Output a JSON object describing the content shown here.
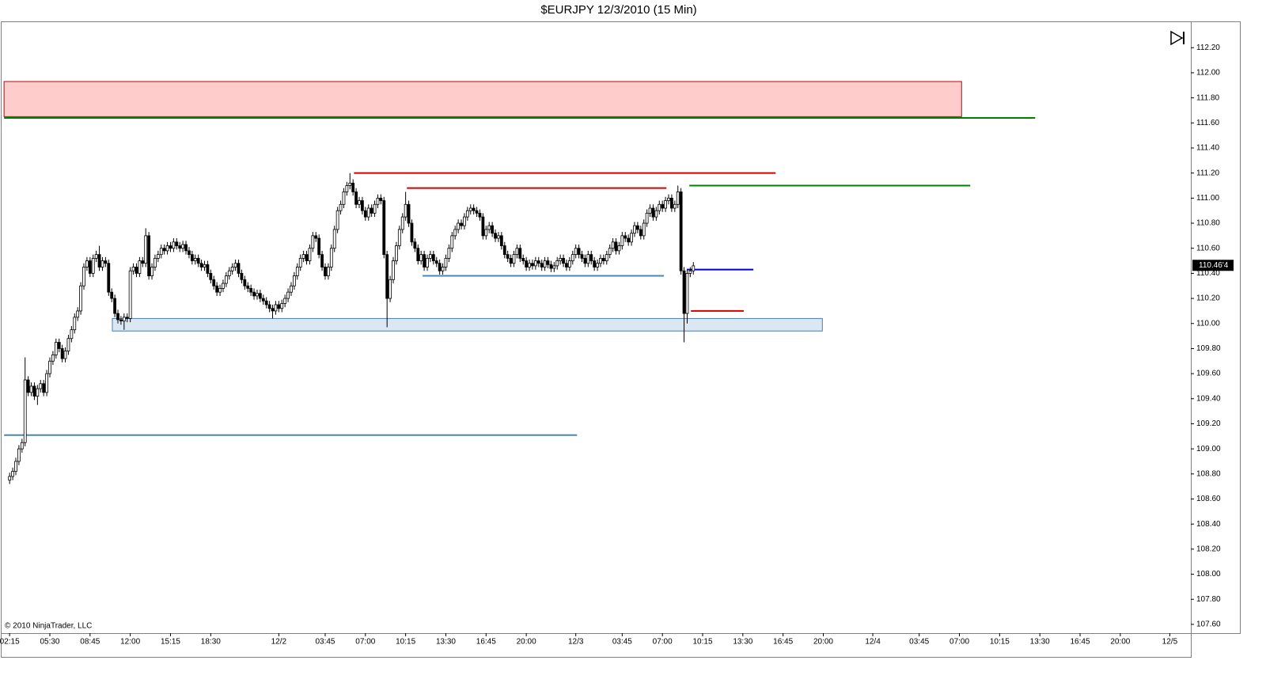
{
  "chart_data": {
    "type": "candlestick",
    "title": "$EURJPY  12/3/2010 (15 Min)",
    "copyright": "© 2010 NinjaTrader, LLC",
    "up_color": "#ffffff",
    "down_color": "#000000",
    "ylim": [
      107.53,
      112.41
    ],
    "xlim": [
      -2.6,
      381.8
    ],
    "yticks": [
      {
        "value": 107.6,
        "label": "107.60"
      },
      {
        "value": 107.8,
        "label": "107.80"
      },
      {
        "value": 108,
        "label": "108.00"
      },
      {
        "value": 108.2,
        "label": "108.20"
      },
      {
        "value": 108.4,
        "label": "108.40"
      },
      {
        "value": 108.6,
        "label": "108.60"
      },
      {
        "value": 108.8,
        "label": "108.80"
      },
      {
        "value": 109,
        "label": "109.00"
      },
      {
        "value": 109.2,
        "label": "109.20"
      },
      {
        "value": 109.4,
        "label": "109.40"
      },
      {
        "value": 109.6,
        "label": "109.60"
      },
      {
        "value": 109.8,
        "label": "109.80"
      },
      {
        "value": 110,
        "label": "110.00"
      },
      {
        "value": 110.2,
        "label": "110.20"
      },
      {
        "value": 110.4,
        "label": "110.40"
      },
      {
        "value": 110.6,
        "label": "110.60"
      },
      {
        "value": 110.8,
        "label": "110.80"
      },
      {
        "value": 111,
        "label": "111.00"
      },
      {
        "value": 111.2,
        "label": "111.20"
      },
      {
        "value": 111.4,
        "label": "111.40"
      },
      {
        "value": 111.6,
        "label": "111.60"
      },
      {
        "value": 111.8,
        "label": "111.80"
      },
      {
        "value": 112,
        "label": "112.00"
      },
      {
        "value": 112.2,
        "label": "112.20"
      }
    ],
    "xticks": [
      {
        "value": 0,
        "label": "02:15"
      },
      {
        "value": 13,
        "label": "05:30"
      },
      {
        "value": 26,
        "label": "08:45"
      },
      {
        "value": 39,
        "label": "12:00"
      },
      {
        "value": 52,
        "label": "15:15"
      },
      {
        "value": 65,
        "label": "18:30"
      },
      {
        "value": 87,
        "label": "12/2"
      },
      {
        "value": 102,
        "label": "03:45"
      },
      {
        "value": 115,
        "label": "07:00"
      },
      {
        "value": 128,
        "label": "10:15"
      },
      {
        "value": 141,
        "label": "13:30"
      },
      {
        "value": 154,
        "label": "16:45"
      },
      {
        "value": 167,
        "label": "20:00"
      },
      {
        "value": 183,
        "label": "12/3"
      },
      {
        "value": 198,
        "label": "03:45"
      },
      {
        "value": 211,
        "label": "07:00"
      },
      {
        "value": 224,
        "label": "10:15"
      },
      {
        "value": 237,
        "label": "13:30"
      },
      {
        "value": 250,
        "label": "16:45"
      },
      {
        "value": 263,
        "label": "20:00"
      },
      {
        "value": 279,
        "label": "12/4"
      },
      {
        "value": 294,
        "label": "03:45"
      },
      {
        "value": 307,
        "label": "07:00"
      },
      {
        "value": 320,
        "label": "10:15"
      },
      {
        "value": 333,
        "label": "13:30"
      },
      {
        "value": 346,
        "label": "16:45"
      },
      {
        "value": 359,
        "label": "20:00"
      },
      {
        "value": 375,
        "label": "12/5"
      }
    ],
    "last_price": {
      "value": 110.464,
      "label": "110.46'4"
    },
    "open": [
      108.75,
      108.78,
      108.82,
      108.9,
      109.0,
      109.05,
      109.55,
      109.45,
      109.5,
      109.42,
      109.48,
      109.52,
      109.45,
      109.6,
      109.7,
      109.75,
      109.85,
      109.8,
      109.72,
      109.78,
      109.88,
      109.95,
      110.05,
      110.1,
      110.3,
      110.45,
      110.5,
      110.4,
      110.52,
      110.55,
      110.45,
      110.5,
      110.48,
      110.25,
      110.2,
      110.08,
      110.03,
      110.02,
      110.05,
      110.04,
      110.42,
      110.45,
      110.4,
      110.5,
      110.48,
      110.7,
      110.38,
      110.45,
      110.52,
      110.55,
      110.6,
      110.58,
      110.62,
      110.6,
      110.65,
      110.62,
      110.6,
      110.63,
      110.58,
      110.55,
      110.5,
      110.52,
      110.48,
      110.45,
      110.47,
      110.4,
      110.35,
      110.3,
      110.25,
      110.28,
      110.32,
      110.38,
      110.42,
      110.45,
      110.48,
      110.4,
      110.35,
      110.3,
      110.28,
      110.25,
      110.22,
      110.24,
      110.2,
      110.18,
      110.15,
      110.12,
      110.1,
      110.15,
      110.12,
      110.16,
      110.2,
      110.25,
      110.3,
      110.38,
      110.45,
      110.52,
      110.55,
      110.5,
      110.6,
      110.7,
      110.68,
      110.55,
      110.45,
      110.38,
      110.45,
      110.6,
      110.75,
      110.9,
      110.95,
      111.05,
      111.1,
      111.12,
      111.05,
      110.95,
      110.98,
      110.9,
      110.85,
      110.92,
      110.88,
      110.95,
      111.0,
      110.98,
      110.55,
      110.2,
      110.35,
      110.5,
      110.62,
      110.75,
      110.85,
      110.95,
      110.8,
      110.65,
      110.6,
      110.5,
      110.55,
      110.45,
      110.52,
      110.55,
      110.5,
      110.48,
      110.42,
      110.45,
      110.52,
      110.6,
      110.7,
      110.75,
      110.8,
      110.78,
      110.85,
      110.9,
      110.92,
      110.9,
      110.88,
      110.85,
      110.7,
      110.75,
      110.78,
      110.72,
      110.68,
      110.7,
      110.62,
      110.55,
      110.52,
      110.48,
      110.55,
      110.6,
      110.52,
      110.5,
      110.45,
      110.48,
      110.46,
      110.5,
      110.48,
      110.45,
      110.5,
      110.47,
      110.44,
      110.46,
      110.5,
      110.52,
      110.48,
      110.45,
      110.5,
      110.55,
      110.6,
      110.55,
      110.52,
      110.48,
      110.55,
      110.5,
      110.45,
      110.48,
      110.52,
      110.5,
      110.55,
      110.6,
      110.65,
      110.58,
      110.62,
      110.7,
      110.68,
      110.65,
      110.72,
      110.78,
      110.75,
      110.7,
      110.8,
      110.88,
      110.92,
      110.85,
      110.9,
      110.95,
      110.92,
      110.98,
      111.0,
      110.92,
      110.95,
      111.05,
      110.42,
      110.08,
      110.4,
      110.42
    ],
    "high": [
      108.81,
      108.85,
      108.93,
      109.03,
      109.08,
      109.73,
      109.58,
      109.53,
      109.53,
      109.51,
      109.55,
      109.55,
      109.63,
      109.73,
      109.78,
      109.88,
      109.88,
      109.83,
      109.81,
      109.91,
      109.98,
      110.08,
      110.13,
      110.33,
      110.48,
      110.53,
      110.53,
      110.55,
      110.58,
      110.62,
      110.53,
      110.53,
      110.51,
      110.28,
      110.23,
      110.11,
      110.06,
      110.08,
      110.08,
      110.45,
      110.48,
      110.48,
      110.53,
      110.53,
      110.76,
      110.73,
      110.48,
      110.55,
      110.58,
      110.63,
      110.63,
      110.65,
      110.65,
      110.68,
      110.68,
      110.65,
      110.66,
      110.66,
      110.61,
      110.58,
      110.55,
      110.55,
      110.51,
      110.5,
      110.5,
      110.43,
      110.38,
      110.33,
      110.31,
      110.35,
      110.41,
      110.45,
      110.48,
      110.51,
      110.51,
      110.43,
      110.38,
      110.33,
      110.31,
      110.28,
      110.27,
      110.27,
      110.23,
      110.21,
      110.18,
      110.15,
      110.18,
      110.18,
      110.19,
      110.23,
      110.28,
      110.33,
      110.41,
      110.48,
      110.55,
      110.58,
      110.58,
      110.63,
      110.73,
      110.73,
      110.71,
      110.58,
      110.48,
      110.48,
      110.63,
      110.78,
      110.93,
      110.98,
      111.08,
      111.13,
      111.2,
      111.15,
      111.08,
      111.01,
      111.01,
      110.93,
      110.95,
      110.95,
      110.98,
      111.03,
      111.03,
      111.01,
      110.58,
      110.38,
      110.53,
      110.65,
      110.78,
      110.88,
      111.05,
      110.98,
      110.83,
      110.68,
      110.63,
      110.58,
      110.58,
      110.55,
      110.58,
      110.58,
      110.53,
      110.51,
      110.48,
      110.55,
      110.63,
      110.73,
      110.78,
      110.83,
      110.83,
      110.88,
      110.93,
      110.95,
      110.95,
      110.93,
      110.91,
      110.88,
      110.78,
      110.81,
      110.81,
      110.75,
      110.73,
      110.73,
      110.65,
      110.58,
      110.55,
      110.58,
      110.63,
      110.63,
      110.55,
      110.53,
      110.51,
      110.51,
      110.53,
      110.53,
      110.51,
      110.53,
      110.53,
      110.5,
      110.49,
      110.53,
      110.55,
      110.55,
      110.51,
      110.53,
      110.58,
      110.63,
      110.63,
      110.58,
      110.55,
      110.58,
      110.58,
      110.53,
      110.51,
      110.55,
      110.55,
      110.58,
      110.63,
      110.68,
      110.68,
      110.65,
      110.73,
      110.73,
      110.71,
      110.75,
      110.81,
      110.81,
      110.78,
      110.83,
      110.91,
      110.95,
      110.95,
      110.93,
      110.98,
      110.98,
      111.01,
      111.03,
      111.03,
      110.98,
      111.1,
      111.08,
      110.45,
      110.43,
      110.45,
      110.49
    ],
    "low": [
      108.72,
      108.75,
      108.79,
      108.87,
      108.97,
      109.02,
      109.42,
      109.42,
      109.39,
      109.35,
      109.45,
      109.42,
      109.42,
      109.57,
      109.67,
      109.72,
      109.77,
      109.69,
      109.69,
      109.75,
      109.85,
      109.92,
      110.02,
      110.07,
      110.27,
      110.42,
      110.37,
      110.37,
      110.49,
      110.42,
      110.42,
      110.45,
      110.22,
      110.17,
      110.05,
      110.0,
      109.99,
      109.95,
      110.01,
      110.01,
      110.39,
      110.37,
      110.37,
      110.45,
      110.45,
      110.35,
      110.35,
      110.42,
      110.49,
      110.52,
      110.55,
      110.55,
      110.57,
      110.57,
      110.59,
      110.57,
      110.57,
      110.55,
      110.52,
      110.47,
      110.47,
      110.45,
      110.42,
      110.42,
      110.37,
      110.32,
      110.27,
      110.22,
      110.22,
      110.25,
      110.29,
      110.35,
      110.39,
      110.42,
      110.37,
      110.32,
      110.27,
      110.25,
      110.22,
      110.19,
      110.19,
      110.17,
      110.15,
      110.12,
      110.09,
      110.04,
      110.07,
      110.09,
      110.09,
      110.13,
      110.17,
      110.22,
      110.27,
      110.35,
      110.42,
      110.49,
      110.47,
      110.47,
      110.57,
      110.65,
      110.52,
      110.42,
      110.35,
      110.35,
      110.42,
      110.57,
      110.72,
      110.87,
      110.92,
      111.02,
      111.07,
      111.02,
      110.92,
      110.92,
      110.87,
      110.82,
      110.82,
      110.85,
      110.85,
      110.92,
      110.95,
      110.52,
      109.97,
      110.17,
      110.32,
      110.47,
      110.59,
      110.72,
      110.82,
      110.77,
      110.62,
      110.57,
      110.47,
      110.47,
      110.42,
      110.42,
      110.49,
      110.47,
      110.45,
      110.39,
      110.39,
      110.42,
      110.49,
      110.57,
      110.67,
      110.72,
      110.75,
      110.75,
      110.82,
      110.87,
      110.87,
      110.85,
      110.82,
      110.67,
      110.67,
      110.72,
      110.69,
      110.65,
      110.65,
      110.59,
      110.52,
      110.49,
      110.45,
      110.45,
      110.52,
      110.49,
      110.47,
      110.42,
      110.42,
      110.43,
      110.43,
      110.45,
      110.42,
      110.42,
      110.44,
      110.41,
      110.41,
      110.43,
      110.47,
      110.45,
      110.42,
      110.42,
      110.47,
      110.52,
      110.52,
      110.49,
      110.45,
      110.45,
      110.47,
      110.42,
      110.42,
      110.45,
      110.47,
      110.47,
      110.52,
      110.57,
      110.55,
      110.55,
      110.59,
      110.65,
      110.62,
      110.62,
      110.69,
      110.72,
      110.67,
      110.67,
      110.77,
      110.85,
      110.82,
      110.82,
      110.87,
      110.89,
      110.89,
      110.95,
      110.89,
      110.89,
      110.92,
      110.39,
      109.85,
      110.0,
      110.37,
      110.39
    ],
    "close": [
      108.78,
      108.82,
      108.9,
      109.0,
      109.05,
      109.55,
      109.45,
      109.5,
      109.42,
      109.48,
      109.52,
      109.45,
      109.6,
      109.7,
      109.75,
      109.85,
      109.8,
      109.72,
      109.78,
      109.88,
      109.95,
      110.05,
      110.1,
      110.3,
      110.45,
      110.5,
      110.4,
      110.52,
      110.55,
      110.45,
      110.5,
      110.48,
      110.25,
      110.2,
      110.08,
      110.03,
      110.02,
      110.05,
      110.04,
      110.42,
      110.45,
      110.4,
      110.5,
      110.48,
      110.7,
      110.38,
      110.45,
      110.52,
      110.55,
      110.6,
      110.58,
      110.62,
      110.6,
      110.65,
      110.62,
      110.6,
      110.63,
      110.58,
      110.55,
      110.5,
      110.52,
      110.48,
      110.45,
      110.47,
      110.4,
      110.35,
      110.3,
      110.25,
      110.28,
      110.32,
      110.38,
      110.42,
      110.45,
      110.48,
      110.4,
      110.35,
      110.3,
      110.28,
      110.25,
      110.22,
      110.24,
      110.2,
      110.18,
      110.15,
      110.12,
      110.1,
      110.15,
      110.12,
      110.16,
      110.2,
      110.25,
      110.3,
      110.38,
      110.45,
      110.52,
      110.55,
      110.5,
      110.6,
      110.7,
      110.68,
      110.55,
      110.45,
      110.38,
      110.45,
      110.6,
      110.75,
      110.9,
      110.95,
      111.05,
      111.1,
      111.12,
      111.05,
      110.95,
      110.98,
      110.9,
      110.85,
      110.92,
      110.88,
      110.95,
      111.0,
      110.98,
      110.55,
      110.2,
      110.35,
      110.5,
      110.62,
      110.75,
      110.85,
      110.95,
      110.8,
      110.65,
      110.6,
      110.5,
      110.55,
      110.45,
      110.52,
      110.55,
      110.5,
      110.48,
      110.42,
      110.45,
      110.52,
      110.6,
      110.7,
      110.75,
      110.8,
      110.78,
      110.85,
      110.9,
      110.92,
      110.9,
      110.88,
      110.85,
      110.7,
      110.75,
      110.78,
      110.72,
      110.68,
      110.7,
      110.62,
      110.55,
      110.52,
      110.48,
      110.55,
      110.6,
      110.52,
      110.5,
      110.45,
      110.48,
      110.46,
      110.5,
      110.48,
      110.45,
      110.5,
      110.47,
      110.44,
      110.46,
      110.5,
      110.52,
      110.48,
      110.45,
      110.5,
      110.55,
      110.6,
      110.55,
      110.52,
      110.48,
      110.55,
      110.5,
      110.45,
      110.48,
      110.52,
      110.5,
      110.55,
      110.6,
      110.65,
      110.58,
      110.62,
      110.7,
      110.68,
      110.65,
      110.72,
      110.78,
      110.75,
      110.7,
      110.8,
      110.88,
      110.92,
      110.85,
      110.9,
      110.95,
      110.92,
      110.98,
      111.0,
      110.92,
      110.95,
      111.05,
      110.42,
      110.08,
      110.4,
      110.42,
      110.46
    ],
    "drawings": [
      {
        "kind": "zone",
        "price": [
          111.65,
          111.93
        ],
        "x": [
          -1.8,
          307.7
        ],
        "color": "#ffcccc",
        "edge": "#c00000"
      },
      {
        "kind": "line",
        "price": 111.64,
        "x": [
          -1.8,
          331.5
        ],
        "color": "#008000"
      },
      {
        "kind": "line",
        "price": 111.2,
        "x": [
          111.3,
          247.6
        ],
        "color": "#d00000"
      },
      {
        "kind": "line",
        "price": 111.08,
        "x": [
          128.4,
          212.3
        ],
        "color": "#d00000"
      },
      {
        "kind": "line",
        "price": 111.1,
        "x": [
          219.7,
          310.5
        ],
        "color": "#008000"
      },
      {
        "kind": "line",
        "price": 110.38,
        "x": [
          133.5,
          211.5
        ],
        "color": "#4a86b0"
      },
      {
        "kind": "zone",
        "price": [
          109.94,
          110.04
        ],
        "x": [
          33.2,
          262.7
        ],
        "color": "#dbe7f3",
        "edge": "#4a7fb0"
      },
      {
        "kind": "line",
        "price": 110.43,
        "x": [
          218.9,
          240.4
        ],
        "color": "#0000cc"
      },
      {
        "kind": "line",
        "price": 110.1,
        "x": [
          220.2,
          237.3
        ],
        "color": "#d00000"
      },
      {
        "kind": "line",
        "price": 109.11,
        "x": [
          -1.8,
          183.4
        ],
        "color": "#4a86b0"
      }
    ]
  }
}
